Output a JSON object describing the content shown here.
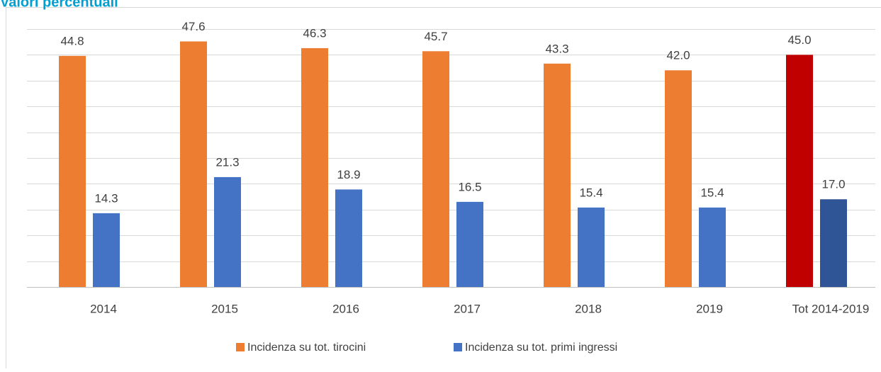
{
  "chart_data": {
    "type": "bar",
    "title": "Valori percentuali",
    "categories": [
      "2014",
      "2015",
      "2016",
      "2017",
      "2018",
      "2019",
      "Tot 2014-2019"
    ],
    "series": [
      {
        "name": "Incidenza su tot. tirocini",
        "color": "#ed7d31",
        "colors": [
          "#ed7d31",
          "#ed7d31",
          "#ed7d31",
          "#ed7d31",
          "#ed7d31",
          "#ed7d31",
          "#c00000"
        ],
        "values": [
          44.8,
          47.6,
          46.3,
          45.7,
          43.3,
          42.0,
          45.0
        ],
        "value_labels": [
          "44.8",
          "47.6",
          "46.3",
          "45.7",
          "43.3",
          "42.0",
          "45.0"
        ]
      },
      {
        "name": "Incidenza su tot. primi ingressi",
        "color": "#4472c4",
        "colors": [
          "#4472c4",
          "#4472c4",
          "#4472c4",
          "#4472c4",
          "#4472c4",
          "#4472c4",
          "#2f5597"
        ],
        "values": [
          14.3,
          21.3,
          18.9,
          16.5,
          15.4,
          15.4,
          17.0
        ],
        "value_labels": [
          "14.3",
          "21.3",
          "18.9",
          "16.5",
          "15.4",
          "15.4",
          "17.0"
        ]
      }
    ],
    "ylim": [
      0,
      50
    ],
    "yticks": [
      0,
      5,
      10,
      15,
      20,
      25,
      30,
      35,
      40,
      45,
      50
    ],
    "grid": true,
    "legend": "bottom"
  }
}
